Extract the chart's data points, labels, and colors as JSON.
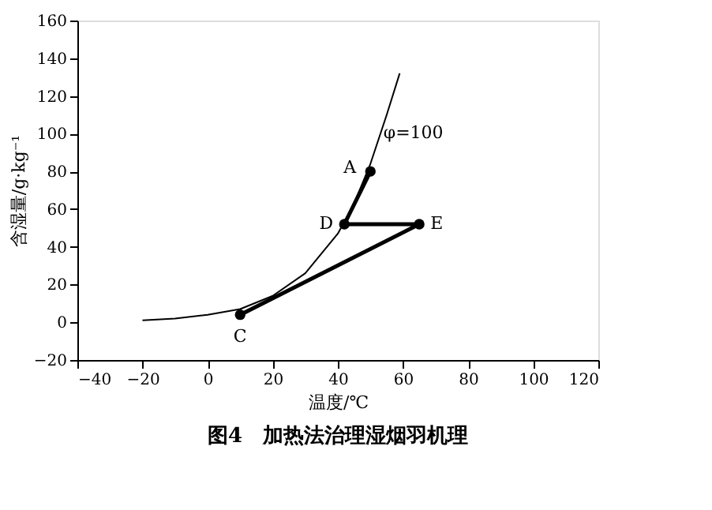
{
  "chart_data": {
    "type": "line",
    "title": "图4　加热法治理湿烟羽机理",
    "xlabel": "温度/℃",
    "ylabel": "含湿量/g·kg⁻¹",
    "xlim": [
      -40,
      120
    ],
    "ylim": [
      -20,
      160
    ],
    "xticks": [
      -40,
      -20,
      0,
      20,
      40,
      60,
      80,
      100,
      120
    ],
    "yticks": [
      -20,
      0,
      20,
      40,
      60,
      80,
      100,
      120,
      140,
      160
    ],
    "grid": false,
    "series": [
      {
        "marker": "none",
        "color": "#000000",
        "x": [
          -20,
          -10,
          0,
          10,
          20,
          30,
          40,
          45,
          50,
          55,
          59
        ],
        "values": [
          1,
          2,
          4,
          7,
          14,
          26,
          47,
          63,
          84,
          110,
          132
        ]
      },
      {
        "marker": "circle",
        "color": "#000000",
        "x": [
          50,
          42,
          65,
          10
        ],
        "values": [
          80,
          52,
          52,
          4
        ]
      }
    ],
    "annotations": [
      {
        "text": "A",
        "x": 50,
        "y": 80
      },
      {
        "text": "D",
        "x": 42,
        "y": 52
      },
      {
        "text": "E",
        "x": 65,
        "y": 52
      },
      {
        "text": "C",
        "x": 10,
        "y": 4
      },
      {
        "text": "φ=100",
        "x": 54,
        "y": 100
      }
    ]
  }
}
